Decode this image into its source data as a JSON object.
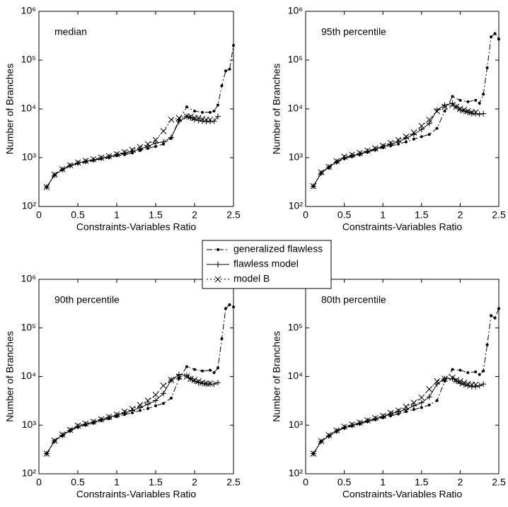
{
  "chart_data": [
    {
      "type": "line",
      "annotation": "median",
      "xlabel": "Constraints-Variables Ratio",
      "ylabel": "Number of Branches",
      "log_y": true,
      "xlim": [
        0,
        2.5
      ],
      "xticks": [
        0,
        0.5,
        1,
        1.5,
        2,
        2.5
      ],
      "ylim": [
        100,
        1000000
      ],
      "yticks": [
        {
          "value": 100,
          "label": "10²"
        },
        {
          "value": 1000,
          "label": "10³"
        },
        {
          "value": 10000,
          "label": "10⁴"
        },
        {
          "value": 100000,
          "label": "10⁵"
        },
        {
          "value": 1000000,
          "label": "10⁶"
        }
      ],
      "series": [
        {
          "name": "generalized flawless",
          "color": "#000000",
          "marker": "dot",
          "dash": "dashdot",
          "x": [
            0.1,
            0.2,
            0.3,
            0.4,
            0.5,
            0.6,
            0.7,
            0.8,
            0.9,
            1.0,
            1.1,
            1.2,
            1.3,
            1.4,
            1.5,
            1.6,
            1.7,
            1.8,
            1.9,
            2.0,
            2.1,
            2.2,
            2.25,
            2.3,
            2.35,
            2.4,
            2.45,
            2.5
          ],
          "values": [
            250,
            440,
            560,
            680,
            760,
            820,
            880,
            950,
            1000,
            1100,
            1150,
            1250,
            1400,
            1550,
            1700,
            1900,
            2500,
            6000,
            11000,
            9000,
            8500,
            8500,
            9000,
            12000,
            30000,
            60000,
            65000,
            200000
          ]
        },
        {
          "name": "flawless model",
          "color": "#000000",
          "marker": "plus",
          "dash": "solid",
          "x": [
            0.1,
            0.2,
            0.3,
            0.4,
            0.5,
            0.6,
            0.7,
            0.8,
            0.9,
            1.0,
            1.1,
            1.2,
            1.3,
            1.4,
            1.5,
            1.6,
            1.7,
            1.8,
            1.9,
            1.95,
            2.0,
            2.05,
            2.1,
            2.15,
            2.2,
            2.25,
            2.3
          ],
          "values": [
            250,
            440,
            570,
            690,
            780,
            840,
            900,
            980,
            1050,
            1150,
            1250,
            1350,
            1500,
            1700,
            2000,
            2100,
            2600,
            5500,
            7000,
            6500,
            6000,
            5800,
            5600,
            5500,
            5500,
            5600,
            7000
          ]
        },
        {
          "name": "model B",
          "color": "#000000",
          "marker": "cross",
          "dash": "dotted",
          "x": [
            0.1,
            0.2,
            0.3,
            0.4,
            0.5,
            0.6,
            0.7,
            0.8,
            0.9,
            1.0,
            1.1,
            1.2,
            1.3,
            1.4,
            1.5,
            1.6,
            1.7,
            1.8,
            1.9,
            1.95,
            2.0,
            2.05,
            2.1,
            2.15,
            2.2
          ],
          "values": [
            250,
            450,
            580,
            700,
            800,
            860,
            930,
            1000,
            1080,
            1180,
            1300,
            1450,
            1650,
            1900,
            2300,
            3500,
            6000,
            6500,
            7000,
            7000,
            6500,
            6500,
            6200,
            6000,
            6000
          ]
        }
      ]
    },
    {
      "type": "line",
      "annotation": "95th percentile",
      "xlabel": "Constraints-Variables Ratio",
      "ylabel": "Number of Branches",
      "log_y": true,
      "xlim": [
        0,
        2.5
      ],
      "xticks": [
        0,
        0.5,
        1,
        1.5,
        2,
        2.5
      ],
      "ylim": [
        100,
        1000000
      ],
      "yticks": [
        {
          "value": 100,
          "label": "10²"
        },
        {
          "value": 1000,
          "label": "10³"
        },
        {
          "value": 10000,
          "label": "10⁴"
        },
        {
          "value": 100000,
          "label": "10⁵"
        },
        {
          "value": 1000000,
          "label": "10⁶"
        }
      ],
      "series": [
        {
          "color": "#000000",
          "marker": "dot",
          "dash": "dashdot",
          "x": [
            0.1,
            0.2,
            0.3,
            0.4,
            0.5,
            0.6,
            0.7,
            0.8,
            0.9,
            1.0,
            1.1,
            1.2,
            1.3,
            1.4,
            1.5,
            1.6,
            1.7,
            1.8,
            1.9,
            2.0,
            2.1,
            2.2,
            2.25,
            2.3,
            2.35,
            2.4,
            2.45,
            2.5
          ],
          "values": [
            260,
            480,
            620,
            800,
            950,
            1050,
            1150,
            1300,
            1450,
            1600,
            1750,
            1900,
            2100,
            2400,
            2700,
            3000,
            4000,
            9000,
            18000,
            15000,
            14000,
            15000,
            13000,
            20000,
            70000,
            300000,
            350000,
            270000
          ]
        },
        {
          "color": "#000000",
          "marker": "plus",
          "dash": "solid",
          "x": [
            0.1,
            0.2,
            0.3,
            0.4,
            0.5,
            0.6,
            0.7,
            0.8,
            0.9,
            1.0,
            1.1,
            1.2,
            1.3,
            1.4,
            1.5,
            1.6,
            1.7,
            1.8,
            1.9,
            1.95,
            2.0,
            2.05,
            2.1,
            2.15,
            2.2,
            2.25,
            2.3
          ],
          "values": [
            260,
            480,
            640,
            820,
            1000,
            1100,
            1200,
            1350,
            1500,
            1700,
            1900,
            2100,
            2500,
            3000,
            3800,
            5000,
            9500,
            12000,
            13000,
            11000,
            9500,
            9000,
            8500,
            8000,
            8000,
            7800,
            8000
          ]
        },
        {
          "color": "#000000",
          "marker": "cross",
          "dash": "dotted",
          "x": [
            0.1,
            0.2,
            0.3,
            0.4,
            0.5,
            0.6,
            0.7,
            0.8,
            0.9,
            1.0,
            1.1,
            1.2,
            1.3,
            1.4,
            1.5,
            1.6,
            1.7,
            1.8,
            1.9,
            1.95,
            2.0,
            2.05,
            2.1,
            2.15,
            2.2
          ],
          "values": [
            260,
            500,
            650,
            850,
            1050,
            1150,
            1250,
            1400,
            1550,
            1750,
            2000,
            2300,
            2700,
            3300,
            4500,
            6000,
            9000,
            11000,
            12000,
            11000,
            10000,
            9500,
            9000,
            8500,
            8500
          ]
        }
      ]
    },
    {
      "type": "line",
      "annotation": "90th percentile",
      "xlabel": "Constraints-Variables Ratio",
      "ylabel": "Number of Branches",
      "log_y": true,
      "xlim": [
        0,
        2.5
      ],
      "xticks": [
        0,
        0.5,
        1,
        1.5,
        2,
        2.5
      ],
      "ylim": [
        100,
        1000000
      ],
      "yticks": [
        {
          "value": 100,
          "label": "10²"
        },
        {
          "value": 1000,
          "label": "10³"
        },
        {
          "value": 10000,
          "label": "10⁴"
        },
        {
          "value": 100000,
          "label": "10⁵"
        },
        {
          "value": 1000000,
          "label": "10⁶"
        }
      ],
      "series": [
        {
          "color": "#000000",
          "marker": "dot",
          "dash": "dashdot",
          "x": [
            0.1,
            0.2,
            0.3,
            0.4,
            0.5,
            0.6,
            0.7,
            0.8,
            0.9,
            1.0,
            1.1,
            1.2,
            1.3,
            1.4,
            1.5,
            1.6,
            1.7,
            1.8,
            1.9,
            2.0,
            2.1,
            2.2,
            2.25,
            2.3,
            2.35,
            2.4,
            2.45,
            2.5
          ],
          "values": [
            260,
            470,
            600,
            760,
            900,
            1000,
            1100,
            1250,
            1350,
            1500,
            1650,
            1800,
            2000,
            2200,
            2500,
            2800,
            3600,
            9000,
            16000,
            14000,
            13000,
            13500,
            12000,
            15000,
            60000,
            250000,
            300000,
            270000
          ]
        },
        {
          "color": "#000000",
          "marker": "plus",
          "dash": "solid",
          "x": [
            0.1,
            0.2,
            0.3,
            0.4,
            0.5,
            0.6,
            0.7,
            0.8,
            0.9,
            1.0,
            1.1,
            1.2,
            1.3,
            1.4,
            1.5,
            1.6,
            1.7,
            1.8,
            1.9,
            1.95,
            2.0,
            2.05,
            2.1,
            2.15,
            2.2,
            2.25,
            2.3
          ],
          "values": [
            260,
            470,
            620,
            780,
            950,
            1050,
            1150,
            1300,
            1450,
            1600,
            1800,
            2000,
            2300,
            2700,
            3200,
            4500,
            8500,
            11000,
            10500,
            9000,
            8000,
            7500,
            7200,
            7000,
            7000,
            7000,
            7500
          ]
        },
        {
          "color": "#000000",
          "marker": "cross",
          "dash": "dotted",
          "x": [
            0.1,
            0.2,
            0.3,
            0.4,
            0.5,
            0.6,
            0.7,
            0.8,
            0.9,
            1.0,
            1.1,
            1.2,
            1.3,
            1.4,
            1.5,
            1.6,
            1.7,
            1.8,
            1.9,
            1.95,
            2.0,
            2.05,
            2.1,
            2.15,
            2.2
          ],
          "values": [
            260,
            480,
            640,
            800,
            980,
            1080,
            1180,
            1320,
            1480,
            1650,
            1900,
            2150,
            2600,
            3200,
            4200,
            6500,
            8500,
            10000,
            10000,
            9000,
            8500,
            8000,
            7500,
            7200,
            7200
          ]
        }
      ]
    },
    {
      "type": "line",
      "annotation": "80th percentile",
      "xlabel": "Constraints-Variables Ratio",
      "ylabel": "Number of Branches",
      "log_y": true,
      "xlim": [
        0,
        2.5
      ],
      "xticks": [
        0,
        0.5,
        1,
        1.5,
        2,
        2.5
      ],
      "ylim": [
        100,
        1000000
      ],
      "yticks": [
        {
          "value": 100,
          "label": "10²"
        },
        {
          "value": 1000,
          "label": "10³"
        },
        {
          "value": 10000,
          "label": "10⁴"
        },
        {
          "value": 100000,
          "label": "10⁵"
        },
        {
          "value": 1000000,
          "label": "10⁶"
        }
      ],
      "series": [
        {
          "color": "#000000",
          "marker": "dot",
          "dash": "dashdot",
          "x": [
            0.1,
            0.2,
            0.3,
            0.4,
            0.5,
            0.6,
            0.7,
            0.8,
            0.9,
            1.0,
            1.1,
            1.2,
            1.3,
            1.4,
            1.5,
            1.6,
            1.7,
            1.8,
            1.9,
            2.0,
            2.1,
            2.2,
            2.25,
            2.3,
            2.35,
            2.4,
            2.45,
            2.5
          ],
          "values": [
            260,
            460,
            590,
            740,
            870,
            960,
            1060,
            1180,
            1300,
            1420,
            1550,
            1700,
            1900,
            2100,
            2300,
            2600,
            3200,
            8000,
            14000,
            13500,
            12000,
            12500,
            11000,
            13000,
            45000,
            180000,
            160000,
            250000
          ]
        },
        {
          "color": "#000000",
          "marker": "plus",
          "dash": "solid",
          "x": [
            0.1,
            0.2,
            0.3,
            0.4,
            0.5,
            0.6,
            0.7,
            0.8,
            0.9,
            1.0,
            1.1,
            1.2,
            1.3,
            1.4,
            1.5,
            1.6,
            1.7,
            1.8,
            1.9,
            1.95,
            2.0,
            2.05,
            2.1,
            2.15,
            2.2,
            2.25,
            2.3
          ],
          "values": [
            260,
            460,
            600,
            760,
            900,
            1000,
            1100,
            1230,
            1360,
            1500,
            1700,
            1900,
            2100,
            2500,
            2900,
            3800,
            7000,
            9000,
            9000,
            8000,
            7200,
            6800,
            6500,
            6200,
            6200,
            6500,
            7000
          ]
        },
        {
          "color": "#000000",
          "marker": "cross",
          "dash": "dotted",
          "x": [
            0.1,
            0.2,
            0.3,
            0.4,
            0.5,
            0.6,
            0.7,
            0.8,
            0.9,
            1.0,
            1.1,
            1.2,
            1.3,
            1.4,
            1.5,
            1.6,
            1.7,
            1.8,
            1.9,
            1.95,
            2.0,
            2.05,
            2.1,
            2.15,
            2.2
          ],
          "values": [
            260,
            470,
            620,
            780,
            930,
            1030,
            1130,
            1260,
            1400,
            1550,
            1780,
            2000,
            2400,
            2900,
            3700,
            5500,
            8000,
            9000,
            9500,
            8500,
            8000,
            7500,
            7000,
            6800,
            6800
          ]
        }
      ]
    }
  ]
}
